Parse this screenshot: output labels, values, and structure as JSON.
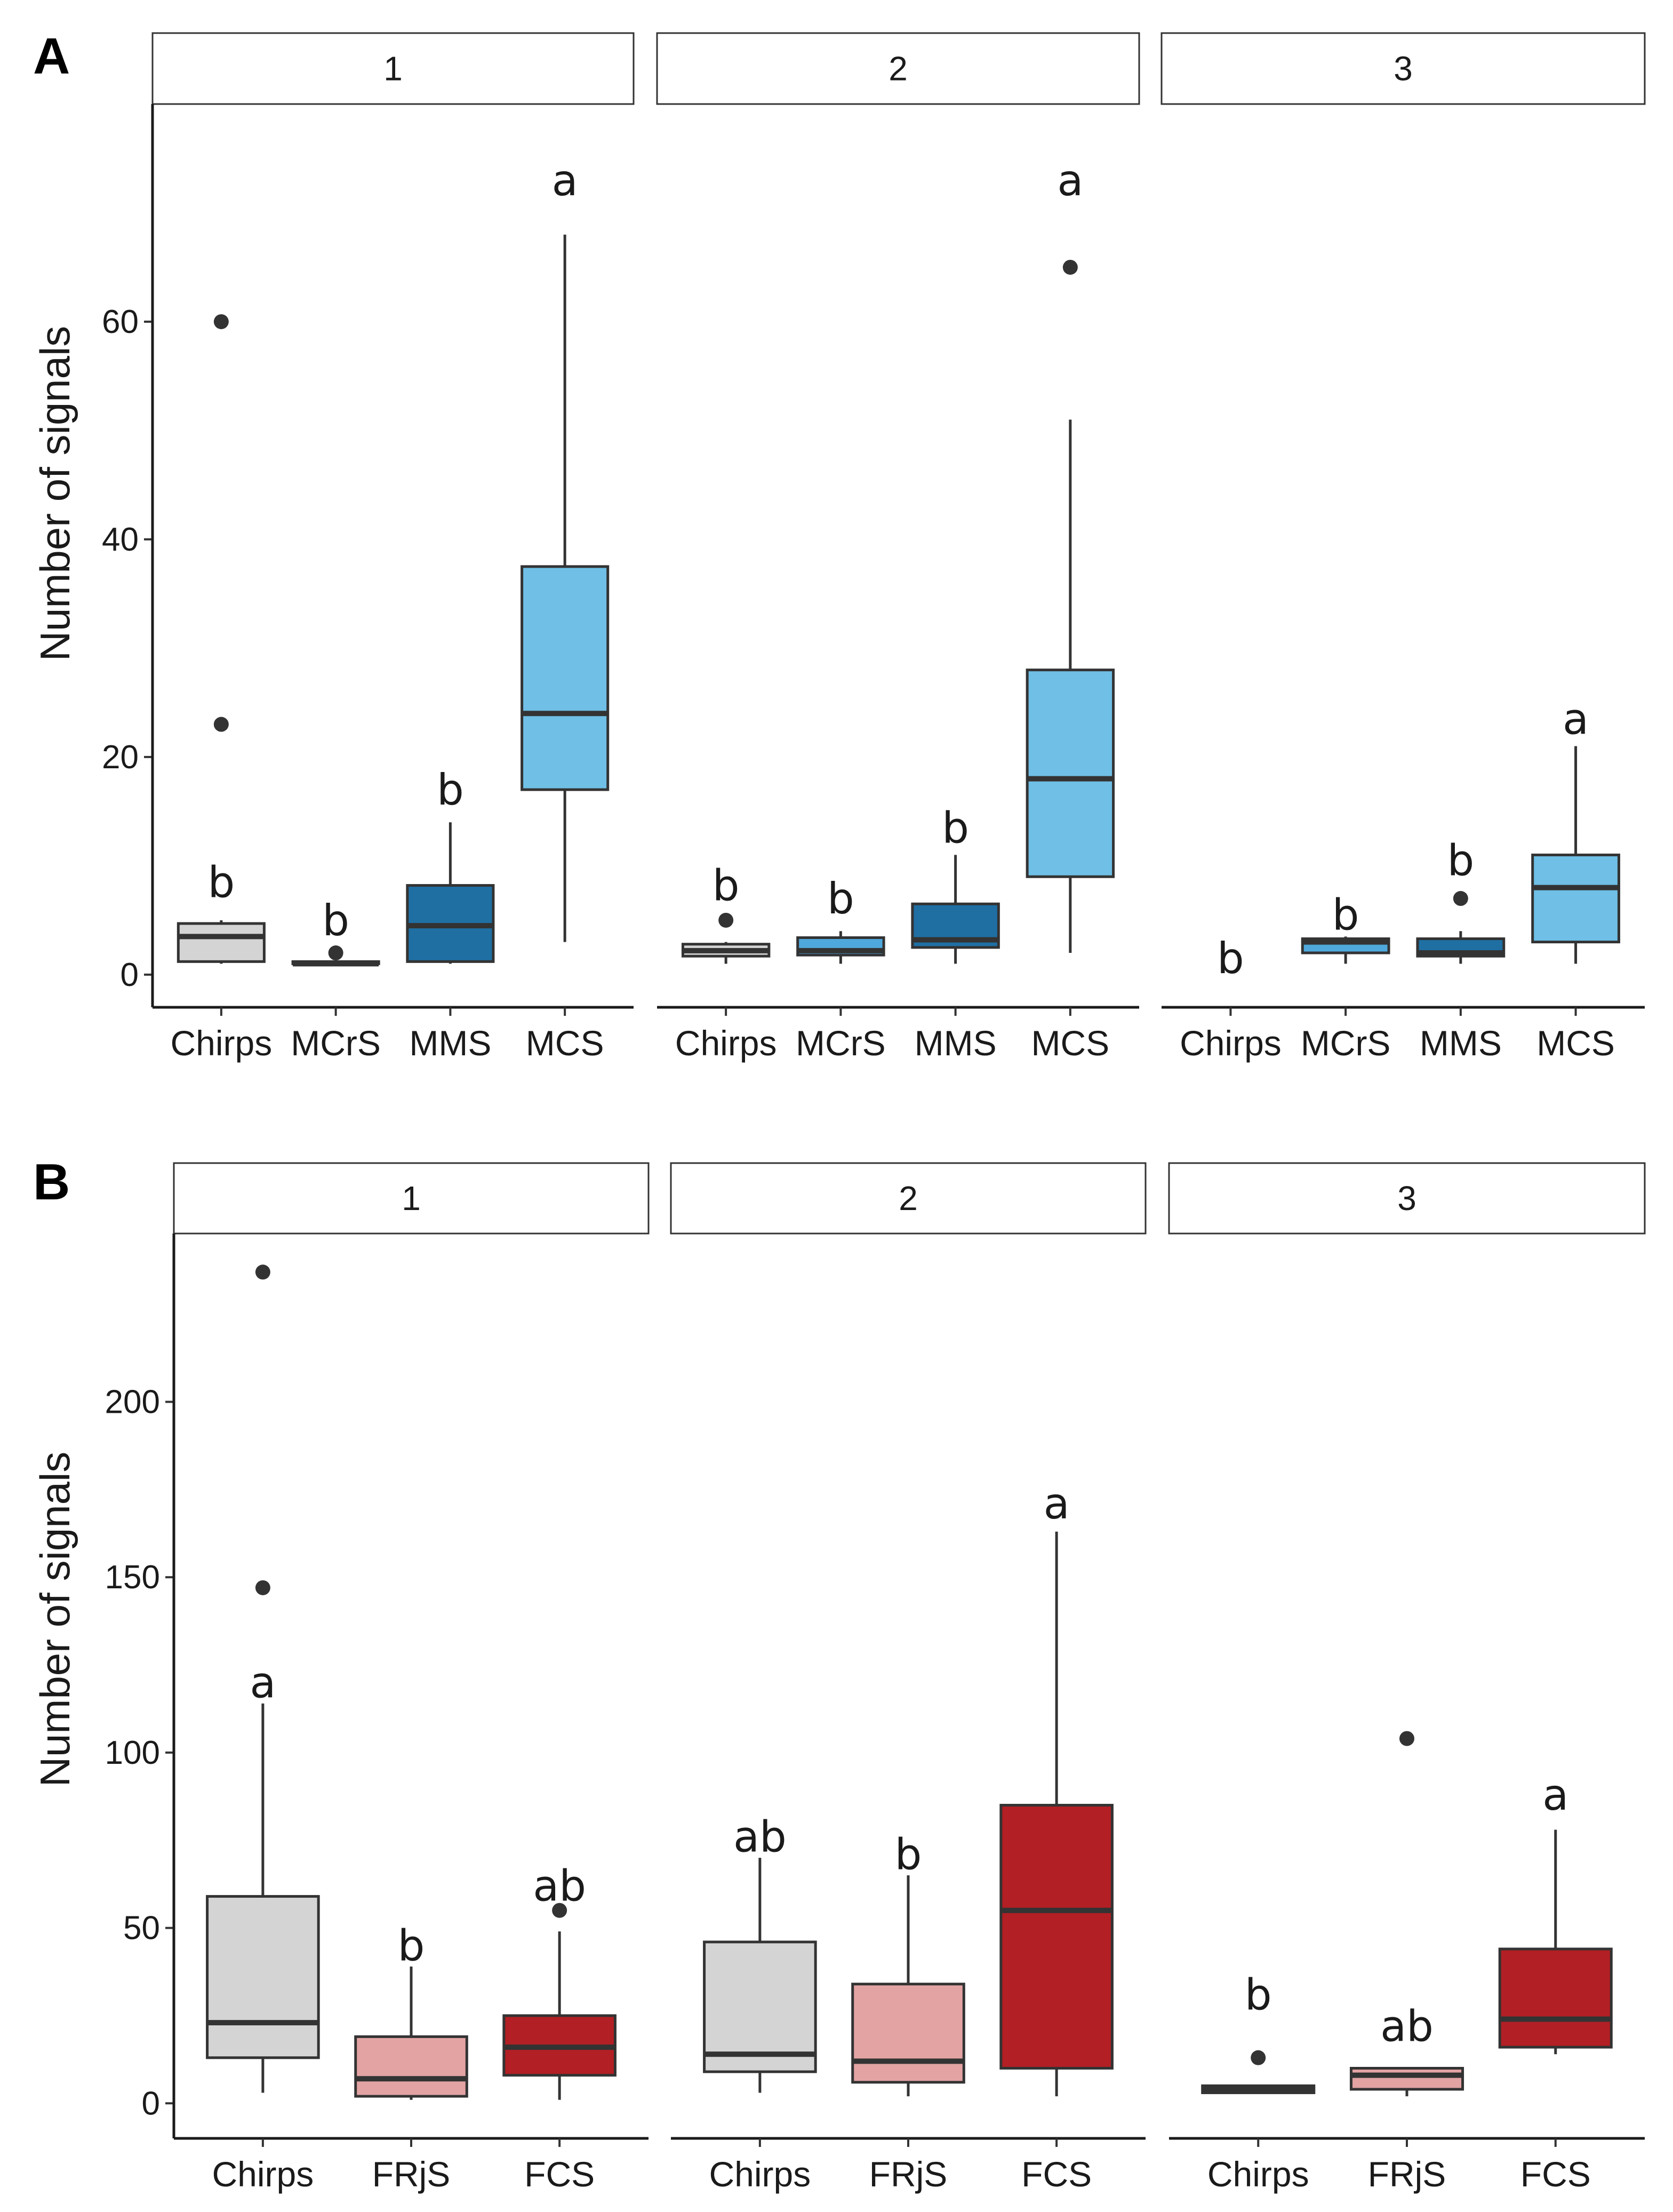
{
  "colors": {
    "chirps": "#d4d4d4",
    "mcrs": "#4fa8db",
    "mms": "#1f6fa3",
    "mcs": "#6fbfe6",
    "frjs": "#e3a3a3",
    "fcs": "#b21f24",
    "line": "#333333",
    "outlier": "#333333"
  },
  "chart_data": [
    {
      "panel_label": "A",
      "type": "boxplot",
      "ylabel": "Number of signals",
      "ylim": [
        -3,
        80
      ],
      "yticks": [
        0,
        20,
        40,
        60
      ],
      "ytick_labels": [
        "0",
        "20",
        "40",
        "60"
      ],
      "facets": [
        {
          "strip": "1",
          "groups": [
            {
              "category": "Chirps",
              "color": "chirps",
              "min": 1,
              "q1": 1.2,
              "median": 3.5,
              "q3": 4.7,
              "max": 5,
              "outliers": [
                23,
                60
              ],
              "letter": "b",
              "letter_y": 8.5
            },
            {
              "category": "MCrS",
              "color": "mcrs",
              "min": 1,
              "q1": 1,
              "median": 1,
              "q3": 1.2,
              "max": 1.3,
              "outliers": [
                2
              ],
              "letter": "b",
              "letter_y": 5
            },
            {
              "category": "MMS",
              "color": "mms",
              "min": 1,
              "q1": 1.2,
              "median": 4.5,
              "q3": 8.2,
              "max": 14,
              "outliers": [],
              "letter": "b",
              "letter_y": 17
            },
            {
              "category": "MCS",
              "color": "mcs",
              "min": 3,
              "q1": 17,
              "median": 24,
              "q3": 37.5,
              "max": 68,
              "outliers": [],
              "letter": "a",
              "letter_y": 73
            }
          ]
        },
        {
          "strip": "2",
          "groups": [
            {
              "category": "Chirps",
              "color": "chirps",
              "min": 1,
              "q1": 1.7,
              "median": 2.2,
              "q3": 2.8,
              "max": 3,
              "outliers": [
                5
              ],
              "letter": "b",
              "letter_y": 8.2
            },
            {
              "category": "MCrS",
              "color": "mcrs",
              "min": 1,
              "q1": 1.8,
              "median": 2.2,
              "q3": 3.4,
              "max": 4,
              "outliers": [],
              "letter": "b",
              "letter_y": 7
            },
            {
              "category": "MMS",
              "color": "mms",
              "min": 1,
              "q1": 2.5,
              "median": 3.2,
              "q3": 6.5,
              "max": 11,
              "outliers": [],
              "letter": "b",
              "letter_y": 13.5
            },
            {
              "category": "MCS",
              "color": "mcs",
              "min": 2,
              "q1": 9,
              "median": 18,
              "q3": 28,
              "max": 51,
              "outliers": [
                65
              ],
              "letter": "a",
              "letter_y": 73
            }
          ]
        },
        {
          "strip": "3",
          "groups": [
            {
              "category": "Chirps",
              "color": "chirps",
              "min": null,
              "q1": null,
              "median": null,
              "q3": null,
              "max": null,
              "outliers": [],
              "letter": "b",
              "letter_y": 1.5
            },
            {
              "category": "MCrS",
              "color": "mcrs",
              "min": 1,
              "q1": 2,
              "median": 3,
              "q3": 3.3,
              "max": 3.5,
              "outliers": [],
              "letter": "b",
              "letter_y": 5.5
            },
            {
              "category": "MMS",
              "color": "mms",
              "min": 1,
              "q1": 1.7,
              "median": 2,
              "q3": 3.3,
              "max": 4,
              "outliers": [
                7
              ],
              "letter": "b",
              "letter_y": 10.5
            },
            {
              "category": "MCS",
              "color": "mcs",
              "min": 1,
              "q1": 3,
              "median": 8,
              "q3": 11,
              "max": 21,
              "outliers": [],
              "letter": "a",
              "letter_y": 23.5
            }
          ]
        }
      ]
    },
    {
      "panel_label": "B",
      "type": "boxplot",
      "ylabel": "Number of signals",
      "ylim": [
        -10,
        248
      ],
      "yticks": [
        0,
        50,
        100,
        150,
        200
      ],
      "ytick_labels": [
        "0",
        "50",
        "100",
        "150",
        "200"
      ],
      "facets": [
        {
          "strip": "1",
          "groups": [
            {
              "category": "Chirps",
              "color": "chirps",
              "min": 3,
              "q1": 13,
              "median": 23,
              "q3": 59,
              "max": 114,
              "outliers": [
                147,
                237
              ],
              "letter": "a",
              "letter_y": 120
            },
            {
              "category": "FRjS",
              "color": "frjs",
              "min": 1,
              "q1": 2,
              "median": 7,
              "q3": 19,
              "max": 39,
              "outliers": [],
              "letter": "b",
              "letter_y": 45
            },
            {
              "category": "FCS",
              "color": "fcs",
              "min": 1,
              "q1": 8,
              "median": 16,
              "q3": 25,
              "max": 49,
              "outliers": [
                55
              ],
              "letter": "ab",
              "letter_y": 62
            }
          ]
        },
        {
          "strip": "2",
          "groups": [
            {
              "category": "Chirps",
              "color": "chirps",
              "min": 3,
              "q1": 9,
              "median": 14,
              "q3": 46,
              "max": 70,
              "outliers": [],
              "letter": "ab",
              "letter_y": 76
            },
            {
              "category": "FRjS",
              "color": "frjs",
              "min": 2,
              "q1": 6,
              "median": 12,
              "q3": 34,
              "max": 65,
              "outliers": [],
              "letter": "b",
              "letter_y": 71
            },
            {
              "category": "FCS",
              "color": "fcs",
              "min": 2,
              "q1": 10,
              "median": 55,
              "q3": 85,
              "max": 163,
              "outliers": [],
              "letter": "a",
              "letter_y": 171
            }
          ]
        },
        {
          "strip": "3",
          "groups": [
            {
              "category": "Chirps",
              "color": "chirps",
              "min": 3,
              "q1": 3,
              "median": 4,
              "q3": 5,
              "max": 5,
              "outliers": [
                13
              ],
              "letter": "b",
              "letter_y": 31
            },
            {
              "category": "FRjS",
              "color": "frjs",
              "min": 2,
              "q1": 4,
              "median": 8,
              "q3": 10,
              "max": 10,
              "outliers": [
                104
              ],
              "letter": "ab",
              "letter_y": 22
            },
            {
              "category": "FCS",
              "color": "fcs",
              "min": 14,
              "q1": 16,
              "median": 24,
              "q3": 44,
              "max": 78,
              "outliers": [],
              "letter": "a",
              "letter_y": 88
            }
          ]
        }
      ]
    }
  ]
}
